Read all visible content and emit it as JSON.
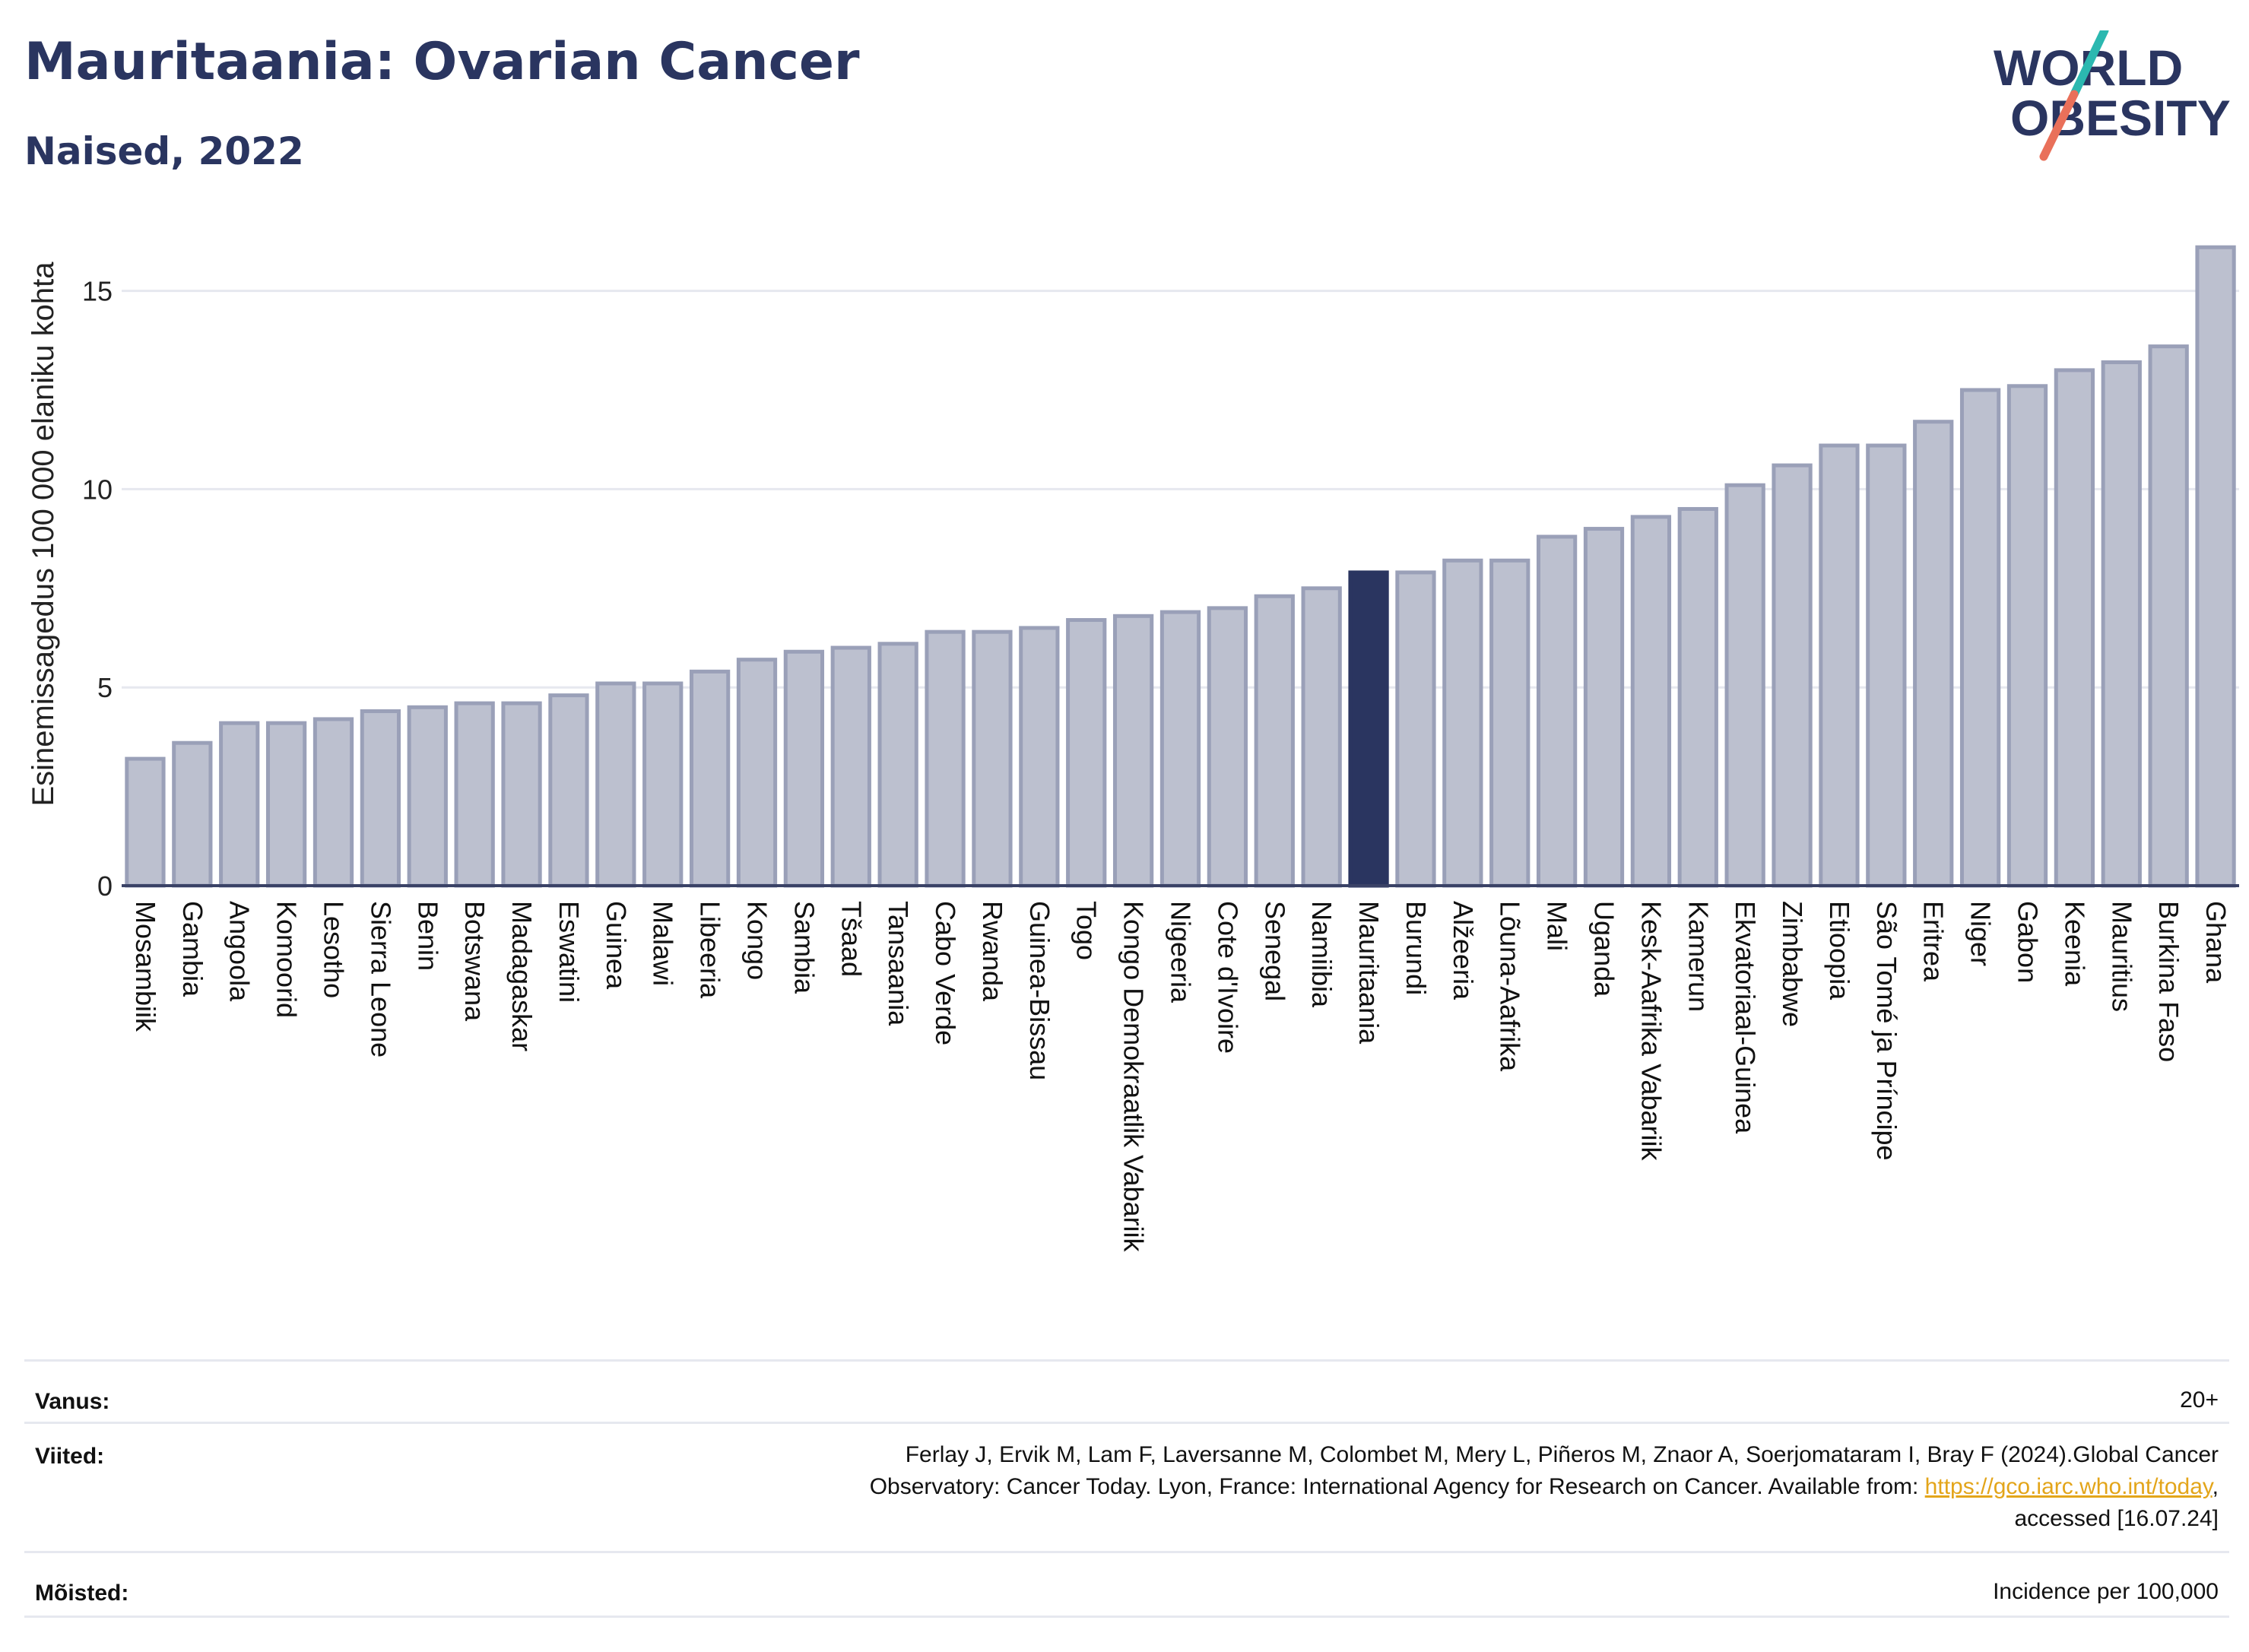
{
  "header": {
    "title": "Mauritaania: Ovarian Cancer",
    "subtitle": "Naised, 2022",
    "logo_line1": "WORLD",
    "logo_line2": "OBESITY"
  },
  "colors": {
    "bar": "#bcc0cf",
    "bar_border": "#9aa0b8",
    "highlight": "#2a3560",
    "grid": "#e6e8ef",
    "title": "#2a3560",
    "logo_teal": "#2bb8b0",
    "logo_red": "#e9705a",
    "link": "#e3a51a"
  },
  "chart_data": {
    "type": "bar",
    "ylabel": "Esinemissagedus 100 000 elaniku kohta",
    "xlabel": "",
    "ylim": [
      0,
      16.2
    ],
    "yticks": [
      0,
      5,
      10,
      15
    ],
    "grid": true,
    "highlight_category": "Mauritaania",
    "categories": [
      "Mosambiik",
      "Gambia",
      "Angoola",
      "Komoorid",
      "Lesotho",
      "Sierra Leone",
      "Benin",
      "Botswana",
      "Madagaskar",
      "Eswatini",
      "Guinea",
      "Malawi",
      "Libeeria",
      "Kongo",
      "Sambia",
      "Tšaad",
      "Tansaania",
      "Cabo Verde",
      "Rwanda",
      "Guinea-Bissau",
      "Togo",
      "Kongo Demokraatlik Vabariik",
      "Nigeeria",
      "Cote d'Ivoire",
      "Senegal",
      "Namiibia",
      "Mauritaania",
      "Burundi",
      "Alžeeria",
      "Lõuna-Aafrika",
      "Mali",
      "Uganda",
      "Kesk-Aafrika Vabariik",
      "Kamerun",
      "Ekvatoriaal-Guinea",
      "Zimbabwe",
      "Etioopia",
      "São Tomé ja Príncipe",
      "Eritrea",
      "Niger",
      "Gabon",
      "Keenia",
      "Mauritius",
      "Burkina Faso",
      "Ghana"
    ],
    "values": [
      3.2,
      3.6,
      4.1,
      4.1,
      4.2,
      4.4,
      4.5,
      4.6,
      4.6,
      4.8,
      5.1,
      5.1,
      5.4,
      5.7,
      5.9,
      6.0,
      6.1,
      6.4,
      6.4,
      6.5,
      6.7,
      6.8,
      6.9,
      7.0,
      7.3,
      7.5,
      7.9,
      7.9,
      8.2,
      8.2,
      8.8,
      9.0,
      9.3,
      9.5,
      10.1,
      10.6,
      11.1,
      11.1,
      11.7,
      12.5,
      12.6,
      13.0,
      13.2,
      13.6,
      16.1
    ]
  },
  "info": {
    "age_label": "Vanus:",
    "age_value": "20+",
    "refs_label": "Viited:",
    "refs_line1": "Ferlay J, Ervik M, Lam F, Laversanne M, Colombet M, Mery L, Piñeros M, Znaor A, Soerjomataram I, Bray F (2024).Global Cancer",
    "refs_line2": "Observatory: Cancer Today. Lyon, France: International Agency for Research on Cancer. Available from: ",
    "refs_link": "https://gco.iarc.who.int/today",
    "refs_line2_end": ",",
    "refs_line3": "accessed [16.07.24]",
    "defs_label": "Mõisted:",
    "defs_value": "Incidence per 100,000"
  }
}
